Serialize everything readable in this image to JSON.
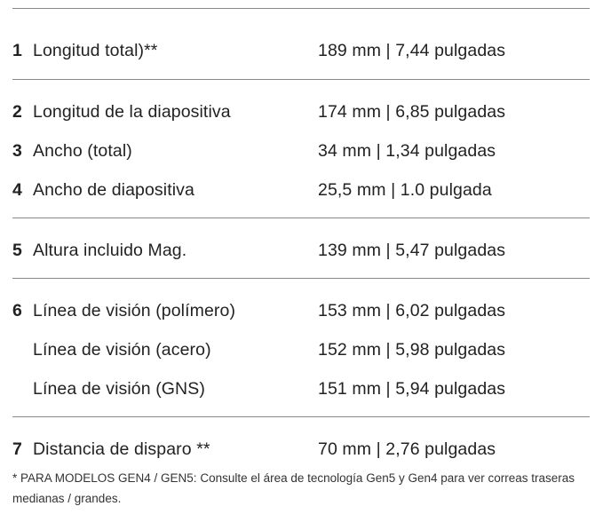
{
  "groups": [
    {
      "rows": [
        {
          "num": "1",
          "label": "Longitud total)**",
          "value": "189 mm | 7,44 pulgadas"
        }
      ]
    },
    {
      "rows": [
        {
          "num": "2",
          "label": "Longitud de la diapositiva",
          "value": "174 mm | 6,85 pulgadas"
        },
        {
          "num": "3",
          "label": "Ancho (total)",
          "value": "34 mm | 1,34 pulgadas"
        },
        {
          "num": "4",
          "label": "Ancho de diapositiva",
          "value": "25,5 mm | 1.0 pulgada"
        }
      ]
    },
    {
      "rows": [
        {
          "num": "5",
          "label": "Altura incluido Mag.",
          "value": "139 mm | 5,47 pulgadas"
        }
      ]
    },
    {
      "rows": [
        {
          "num": "6",
          "label": "Línea de visión (polímero)",
          "value": "153 mm | 6,02 pulgadas"
        },
        {
          "num": "",
          "label": "Línea de visión (acero)",
          "value": "152 mm | 5,98 pulgadas"
        },
        {
          "num": "",
          "label": "Línea de visión (GNS)",
          "value": "151 mm | 5,94 pulgadas"
        }
      ]
    },
    {
      "rows": [
        {
          "num": "7",
          "label": "Distancia de disparo **",
          "value": "70 mm | 2,76 pulgadas"
        }
      ]
    }
  ],
  "footnote": "* PARA MODELOS GEN4 / GEN5: Consulte el área de tecnología Gen5 y Gen4 para ver correas traseras medianas / grandes."
}
